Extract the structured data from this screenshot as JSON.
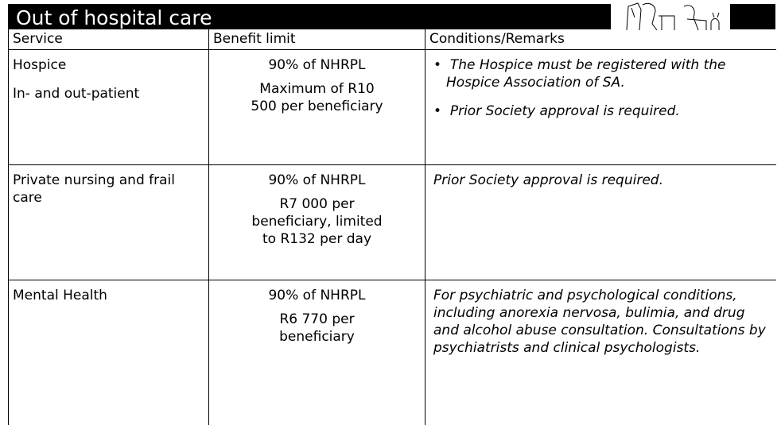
{
  "header": {
    "title": "Out of hospital care"
  },
  "table": {
    "columns": [
      "Service",
      "Benefit limit",
      "Conditions/Remarks"
    ],
    "rows": [
      {
        "service": [
          "Hospice",
          "In- and out-patient"
        ],
        "benefit": [
          "90% of NHRPL",
          "Maximum of R10 500 per beneficiary"
        ],
        "remarks_bullets": [
          "The Hospice must be registered with the Hospice Association of SA.",
          "Prior Society approval is required."
        ]
      },
      {
        "service": [
          "Private nursing and frail care"
        ],
        "benefit": [
          "90% of NHRPL",
          "R7 000 per beneficiary, limited to R132 per day"
        ],
        "remarks": [
          "Prior Society approval is required."
        ]
      },
      {
        "service": [
          "Mental Health"
        ],
        "benefit": [
          "90% of NHRPL",
          "R6 770 per beneficiary"
        ],
        "remarks": [
          "For psychiatric and psychological conditions, including anorexia nervosa, bulimia, and drug and alcohol abuse consultation. Consultations by psychiatrists and clinical psychologists."
        ]
      }
    ]
  }
}
